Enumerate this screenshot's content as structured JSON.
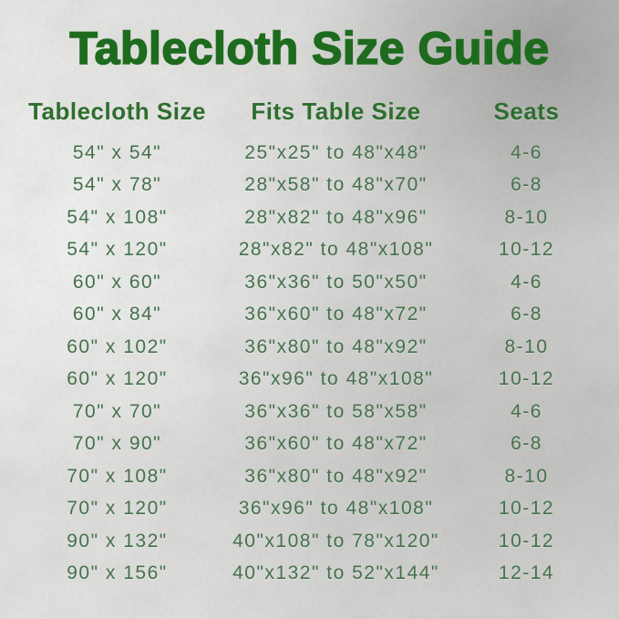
{
  "title": "Tablecloth Size Guide",
  "colors": {
    "title_green": "#1e6b1e",
    "header_green": "#2e6e2e",
    "row_green": "#45714b",
    "background_silver": "#d4d4d2"
  },
  "table": {
    "columns": [
      "Tablecloth Size",
      "Fits Table Size",
      "Seats"
    ],
    "rows": [
      [
        "54\" x 54\"",
        "25\"x25\" to 48\"x48\"",
        "4-6"
      ],
      [
        "54\" x 78\"",
        "28\"x58\" to 48\"x70\"",
        "6-8"
      ],
      [
        "54\" x 108\"",
        "28\"x82\" to 48\"x96\"",
        "8-10"
      ],
      [
        "54\" x 120\"",
        "28\"x82\" to 48\"x108\"",
        "10-12"
      ],
      [
        "60\" x 60\"",
        "36\"x36\" to 50\"x50\"",
        "4-6"
      ],
      [
        "60\" x 84\"",
        "36\"x60\" to 48\"x72\"",
        "6-8"
      ],
      [
        "60\" x 102\"",
        "36\"x80\" to 48\"x92\"",
        "8-10"
      ],
      [
        "60\" x 120\"",
        "36\"x96\" to 48\"x108\"",
        "10-12"
      ],
      [
        "70\" x 70\"",
        "36\"x36\" to 58\"x58\"",
        "4-6"
      ],
      [
        "70\" x 90\"",
        "36\"x60\" to 48\"x72\"",
        "6-8"
      ],
      [
        "70\" x 108\"",
        "36\"x80\" to 48\"x92\"",
        "8-10"
      ],
      [
        "70\" x 120\"",
        "36\"x96\" to 48\"x108\"",
        "10-12"
      ],
      [
        "90\" x 132\"",
        "40\"x108\" to 78\"x120\"",
        "10-12"
      ],
      [
        "90\" x 156\"",
        "40\"x132\" to 52\"x144\"",
        "12-14"
      ]
    ]
  },
  "chart_data": {
    "type": "table",
    "title": "Tablecloth Size Guide",
    "columns": [
      "Tablecloth Size",
      "Fits Table Size",
      "Seats"
    ],
    "rows": [
      [
        "54\" x 54\"",
        "25\"x25\" to 48\"x48\"",
        "4-6"
      ],
      [
        "54\" x 78\"",
        "28\"x58\" to 48\"x70\"",
        "6-8"
      ],
      [
        "54\" x 108\"",
        "28\"x82\" to 48\"x96\"",
        "8-10"
      ],
      [
        "54\" x 120\"",
        "28\"x82\" to 48\"x108\"",
        "10-12"
      ],
      [
        "60\" x 60\"",
        "36\"x36\" to 50\"x50\"",
        "4-6"
      ],
      [
        "60\" x 84\"",
        "36\"x60\" to 48\"x72\"",
        "6-8"
      ],
      [
        "60\" x 102\"",
        "36\"x80\" to 48\"x92\"",
        "8-10"
      ],
      [
        "60\" x 120\"",
        "36\"x96\" to 48\"x108\"",
        "10-12"
      ],
      [
        "70\" x 70\"",
        "36\"x36\" to 58\"x58\"",
        "4-6"
      ],
      [
        "70\" x 90\"",
        "36\"x60\" to 48\"x72\"",
        "6-8"
      ],
      [
        "70\" x 108\"",
        "36\"x80\" to 48\"x92\"",
        "8-10"
      ],
      [
        "70\" x 120\"",
        "36\"x96\" to 48\"x108\"",
        "10-12"
      ],
      [
        "90\" x 132\"",
        "40\"x108\" to 78\"x120\"",
        "10-12"
      ],
      [
        "90\" x 156\"",
        "40\"x132\" to 52\"x144\"",
        "12-14"
      ]
    ]
  }
}
